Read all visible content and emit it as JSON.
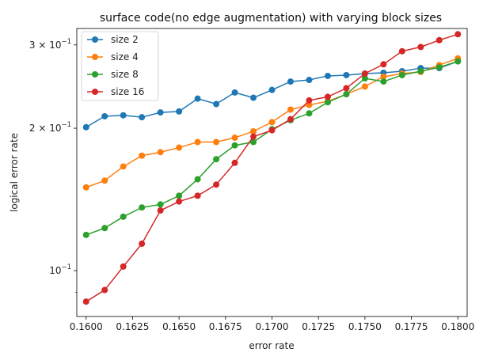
{
  "chart_data": {
    "type": "line",
    "title": "surface code(no edge augmentation) with varying block sizes",
    "xlabel": "error rate",
    "ylabel": "logical error rate",
    "yscale": "log",
    "xlim": [
      0.1595,
      0.1805
    ],
    "ylim": [
      0.08,
      0.325
    ],
    "x_ticks": [
      0.16,
      0.1625,
      0.165,
      0.1675,
      0.17,
      0.1725,
      0.175,
      0.1775,
      0.18
    ],
    "x_tick_labels": [
      "0.1600",
      "0.1625",
      "0.1650",
      "0.1675",
      "0.1700",
      "0.1725",
      "0.1750",
      "0.1775",
      "0.1800"
    ],
    "y_major_ticks": [
      0.1,
      0.2,
      0.3
    ],
    "y_tick_labels": [
      {
        "base": "10",
        "sup": "−1"
      },
      {
        "base": "2 × 10",
        "sup": "−1"
      },
      {
        "base": "3 × 10",
        "sup": "−1"
      }
    ],
    "y_minor_ticks": [
      0.09,
      0.4
    ],
    "grid": false,
    "legend_position": "top-left",
    "x": [
      0.16,
      0.161,
      0.162,
      0.163,
      0.164,
      0.165,
      0.166,
      0.167,
      0.168,
      0.169,
      0.17,
      0.171,
      0.172,
      0.173,
      0.174,
      0.175,
      0.176,
      0.177,
      0.178,
      0.179,
      0.18
    ],
    "series": [
      {
        "name": "size 2",
        "color": "#1f77b4",
        "values": [
          0.201,
          0.212,
          0.213,
          0.211,
          0.216,
          0.217,
          0.231,
          0.225,
          0.238,
          0.232,
          0.241,
          0.251,
          0.253,
          0.258,
          0.259,
          0.261,
          0.262,
          0.264,
          0.268,
          0.268,
          0.277
        ]
      },
      {
        "name": "size 4",
        "color": "#ff7f0e",
        "values": [
          0.15,
          0.155,
          0.166,
          0.175,
          0.178,
          0.182,
          0.187,
          0.187,
          0.191,
          0.197,
          0.206,
          0.219,
          0.224,
          0.228,
          0.236,
          0.245,
          0.257,
          0.261,
          0.263,
          0.272,
          0.281
        ]
      },
      {
        "name": "size 8",
        "color": "#2ca02c",
        "values": [
          0.119,
          0.123,
          0.13,
          0.136,
          0.138,
          0.144,
          0.156,
          0.172,
          0.184,
          0.187,
          0.199,
          0.208,
          0.215,
          0.227,
          0.236,
          0.255,
          0.251,
          0.259,
          0.264,
          0.269,
          0.277
        ]
      },
      {
        "name": "size 16",
        "color": "#d62728",
        "values": [
          0.086,
          0.091,
          0.102,
          0.114,
          0.134,
          0.14,
          0.144,
          0.152,
          0.169,
          0.192,
          0.198,
          0.209,
          0.229,
          0.233,
          0.243,
          0.261,
          0.273,
          0.291,
          0.297,
          0.307,
          0.316
        ]
      }
    ]
  }
}
